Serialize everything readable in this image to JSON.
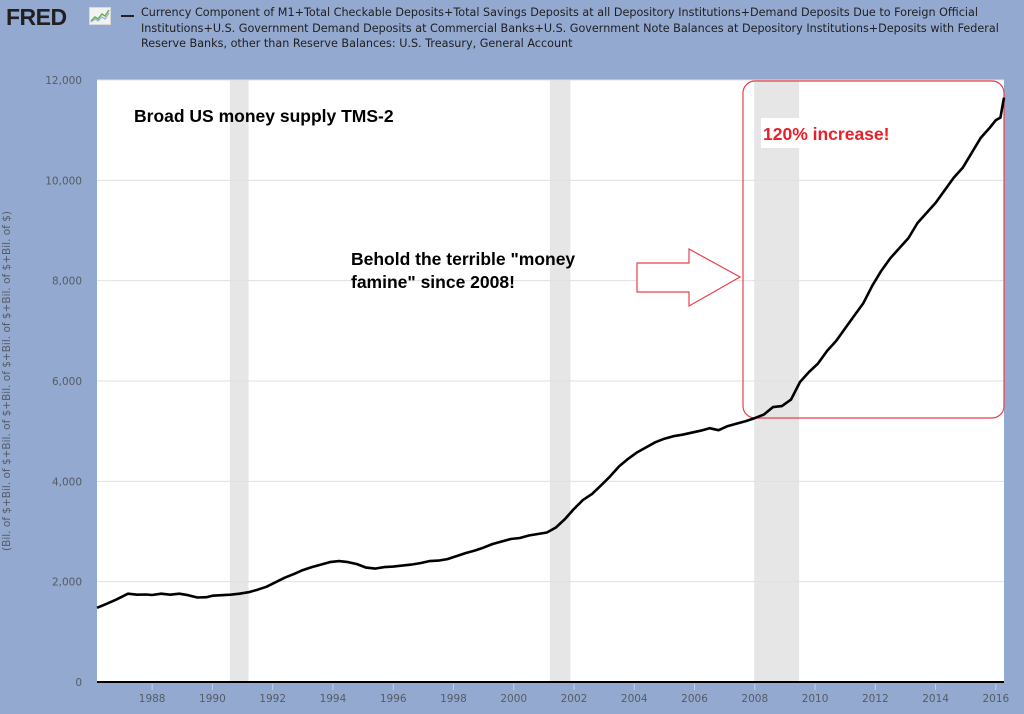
{
  "header": {
    "logo_text": "FRED",
    "logo_icon": "line-chart-icon",
    "series_title": "Currency Component of M1+Total Checkable Deposits+Total Savings Deposits at all Depository Institutions+Demand Deposits Due to Foreign Official Institutions+U.S. Government Demand Deposits at Commercial Banks+U.S. Government Note Balances at Depository Institutions+Deposits with Federal Reserve Banks, other than Reserve Balances: U.S. Treasury, General Account"
  },
  "annotations": {
    "title": "Broad US money supply TMS-2",
    "comment_line1": "Behold the terrible \"money",
    "comment_line2": "famine\" since 2008!",
    "highlight": "120% increase!",
    "highlight_color": "#e8202a"
  },
  "colors": {
    "background": "#93a9cf",
    "plot_bg": "#ffffff",
    "recession": "#e6e6e6",
    "line": "#000000",
    "grid": "#e0e0e0",
    "annotation_red": "#e8202a"
  },
  "chart_data": {
    "type": "line",
    "title": "Broad US money supply TMS-2",
    "xlabel": "",
    "ylabel": "(Bil. of $+Bil. of $+Bil. of $+Bil. of $+Bil. of $+Bil. of $+Bil. of $)",
    "ylim": [
      0,
      12000
    ],
    "xlim": [
      1986.17,
      2016.27
    ],
    "yticks": [
      0,
      2000,
      4000,
      6000,
      8000,
      10000,
      12000
    ],
    "ytick_labels": [
      "0",
      "2,000",
      "4,000",
      "6,000",
      "8,000",
      "10,000",
      "12,000"
    ],
    "xticks": [
      1988,
      1990,
      1992,
      1994,
      1996,
      1998,
      2000,
      2002,
      2004,
      2006,
      2008,
      2010,
      2012,
      2014,
      2016
    ],
    "xtick_labels": [
      "1988",
      "1990",
      "1992",
      "1994",
      "1996",
      "1998",
      "2000",
      "2002",
      "2004",
      "2006",
      "2008",
      "2010",
      "2012",
      "2014",
      "2016"
    ],
    "grid": true,
    "legend": "top",
    "recessions": [
      [
        1990.58,
        1991.2
      ],
      [
        2001.2,
        2001.88
      ],
      [
        2007.98,
        2009.47
      ]
    ],
    "series": [
      {
        "name": "TMS-2",
        "x": [
          1986.17,
          1986.5,
          1986.8,
          1987.0,
          1987.2,
          1987.5,
          1987.8,
          1988.0,
          1988.3,
          1988.6,
          1988.9,
          1989.2,
          1989.5,
          1989.8,
          1990.0,
          1990.3,
          1990.6,
          1990.9,
          1991.2,
          1991.5,
          1991.8,
          1992.1,
          1992.4,
          1992.7,
          1993.0,
          1993.3,
          1993.6,
          1993.9,
          1994.2,
          1994.5,
          1994.8,
          1995.1,
          1995.4,
          1995.7,
          1996.0,
          1996.3,
          1996.6,
          1996.9,
          1997.2,
          1997.5,
          1997.8,
          1998.1,
          1998.4,
          1998.7,
          1999.0,
          1999.3,
          1999.6,
          1999.9,
          2000.2,
          2000.5,
          2000.8,
          2001.1,
          2001.4,
          2001.7,
          2002.0,
          2002.3,
          2002.6,
          2002.9,
          2003.2,
          2003.5,
          2003.8,
          2004.1,
          2004.4,
          2004.7,
          2005.0,
          2005.3,
          2005.6,
          2005.9,
          2006.2,
          2006.5,
          2006.8,
          2007.1,
          2007.4,
          2007.7,
          2008.0,
          2008.3,
          2008.6,
          2008.9,
          2009.2,
          2009.5,
          2009.8,
          2010.1,
          2010.4,
          2010.7,
          2011.0,
          2011.3,
          2011.6,
          2011.9,
          2012.2,
          2012.5,
          2012.8,
          2013.1,
          2013.4,
          2013.7,
          2014.0,
          2014.3,
          2014.6,
          2014.9,
          2015.2,
          2015.5,
          2015.8,
          2016.0,
          2016.15,
          2016.27
        ],
        "values": [
          1480,
          1560,
          1640,
          1700,
          1760,
          1740,
          1745,
          1735,
          1760,
          1740,
          1760,
          1730,
          1685,
          1690,
          1720,
          1730,
          1740,
          1760,
          1790,
          1840,
          1900,
          1990,
          2080,
          2150,
          2230,
          2290,
          2340,
          2390,
          2410,
          2390,
          2350,
          2280,
          2260,
          2290,
          2300,
          2320,
          2340,
          2370,
          2410,
          2420,
          2450,
          2510,
          2570,
          2620,
          2680,
          2750,
          2800,
          2850,
          2870,
          2920,
          2950,
          2980,
          3080,
          3250,
          3450,
          3630,
          3750,
          3920,
          4100,
          4300,
          4450,
          4580,
          4680,
          4780,
          4850,
          4900,
          4930,
          4970,
          5010,
          5060,
          5020,
          5100,
          5150,
          5200,
          5260,
          5330,
          5480,
          5500,
          5630,
          5980,
          6180,
          6350,
          6600,
          6800,
          7050,
          7300,
          7550,
          7900,
          8200,
          8450,
          8650,
          8850,
          9150,
          9350,
          9550,
          9800,
          10050,
          10250,
          10550,
          10850,
          11050,
          11200,
          11250,
          11650
        ]
      }
    ]
  }
}
